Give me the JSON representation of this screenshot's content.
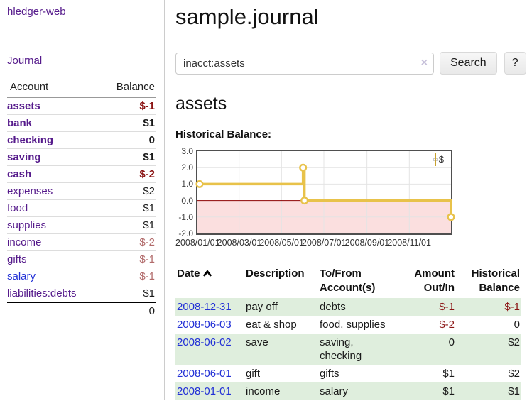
{
  "sidebar": {
    "brand": "hledger-web",
    "nav": [
      {
        "label": "Journal"
      }
    ],
    "table": {
      "headers": [
        "Account",
        "Balance"
      ],
      "rows": [
        {
          "name": "assets",
          "indent": 1,
          "bold": true,
          "link_color": "purple",
          "balance": "$-1",
          "balance_style": "neg-strong"
        },
        {
          "name": "bank",
          "indent": 2,
          "bold": true,
          "link_color": "purple",
          "balance": "$1",
          "balance_style": "pos"
        },
        {
          "name": "checking",
          "indent": 3,
          "bold": true,
          "link_color": "purple",
          "balance": "0",
          "balance_style": "pos"
        },
        {
          "name": "saving",
          "indent": 3,
          "bold": true,
          "link_color": "purple",
          "balance": "$1",
          "balance_style": "pos"
        },
        {
          "name": "cash",
          "indent": 2,
          "bold": true,
          "link_color": "purple",
          "balance": "$-2",
          "balance_style": "neg-strong"
        },
        {
          "name": "expenses",
          "indent": 1,
          "bold": false,
          "link_color": "purple",
          "balance": "$2",
          "balance_style": "pos"
        },
        {
          "name": "food",
          "indent": 2,
          "bold": false,
          "link_color": "purple",
          "balance": "$1",
          "balance_style": "pos"
        },
        {
          "name": "supplies",
          "indent": 2,
          "bold": false,
          "link_color": "purple",
          "balance": "$1",
          "balance_style": "pos"
        },
        {
          "name": "income",
          "indent": 1,
          "bold": false,
          "link_color": "purple",
          "balance": "$-2",
          "balance_style": "neg-muted"
        },
        {
          "name": "gifts",
          "indent": 2,
          "bold": false,
          "link_color": "purple",
          "balance": "$-1",
          "balance_style": "neg-muted"
        },
        {
          "name": "salary",
          "indent": 2,
          "bold": false,
          "link_color": "blue",
          "balance": "$-1",
          "balance_style": "neg-muted"
        },
        {
          "name": "liabilities:debts",
          "indent": 1,
          "bold": false,
          "link_color": "purple",
          "balance": "$1",
          "balance_style": "pos"
        }
      ],
      "total": "0"
    }
  },
  "header": {
    "title": "sample.journal"
  },
  "search": {
    "value": "inacct:assets",
    "clear_icon": "×",
    "button_label": "Search",
    "help_label": "?"
  },
  "account_page": {
    "title": "assets",
    "chart_label": "Historical Balance:"
  },
  "chart_data": {
    "type": "line",
    "title": "Historical Balance",
    "step": true,
    "xlim": [
      "2008-01-01",
      "2008-12-31"
    ],
    "ylim": [
      -2,
      3
    ],
    "yticks": [
      3.0,
      2.0,
      1.0,
      0.0,
      -1.0,
      -2.0
    ],
    "xticks": [
      "2008/01/01",
      "2008/03/01",
      "2008/05/01",
      "2008/07/01",
      "2008/09/01",
      "2008/11/01"
    ],
    "series": [
      {
        "name": "$",
        "color": "#e8c24a",
        "points": [
          [
            "2008-01-01",
            1
          ],
          [
            "2008-06-01",
            2
          ],
          [
            "2008-06-03",
            0
          ],
          [
            "2008-12-31",
            -1
          ]
        ]
      }
    ],
    "grid": true,
    "legend_position": "top-right",
    "negative_fill": "#fbdfdf",
    "zero_line_color": "#8b0000"
  },
  "register": {
    "columns": [
      "Date",
      "Description",
      "To/From Account(s)",
      "Amount Out/In",
      "Historical Balance"
    ],
    "rows": [
      {
        "date": "2008-12-31",
        "description": "pay off",
        "accounts": [
          "debts"
        ],
        "amount": "$-1",
        "amount_negative": true,
        "balance": "$-1",
        "balance_negative": true
      },
      {
        "date": "2008-06-03",
        "description": "eat & shop",
        "accounts": [
          "food, supplies"
        ],
        "amount": "$-2",
        "amount_negative": true,
        "balance": "0",
        "balance_negative": false
      },
      {
        "date": "2008-06-02",
        "description": "save",
        "accounts": [
          "saving,",
          "checking"
        ],
        "amount": "0",
        "amount_negative": false,
        "balance": "$2",
        "balance_negative": false
      },
      {
        "date": "2008-06-01",
        "description": "gift",
        "accounts": [
          "gifts"
        ],
        "amount": "$1",
        "amount_negative": false,
        "balance": "$2",
        "balance_negative": false
      },
      {
        "date": "2008-01-01",
        "description": "income",
        "accounts": [
          "salary"
        ],
        "amount": "$1",
        "amount_negative": false,
        "balance": "$1",
        "balance_negative": false
      }
    ]
  },
  "colors": {
    "link_purple": "#551a8b",
    "link_blue": "#2230d6",
    "negative_strong": "#8b1414",
    "negative_muted": "#b26b6b",
    "row_green": "#dfeedd",
    "chart_gold": "#e8c24a",
    "chart_negative_fill": "#fbdfdf",
    "chart_zero_line": "#8b0000"
  }
}
